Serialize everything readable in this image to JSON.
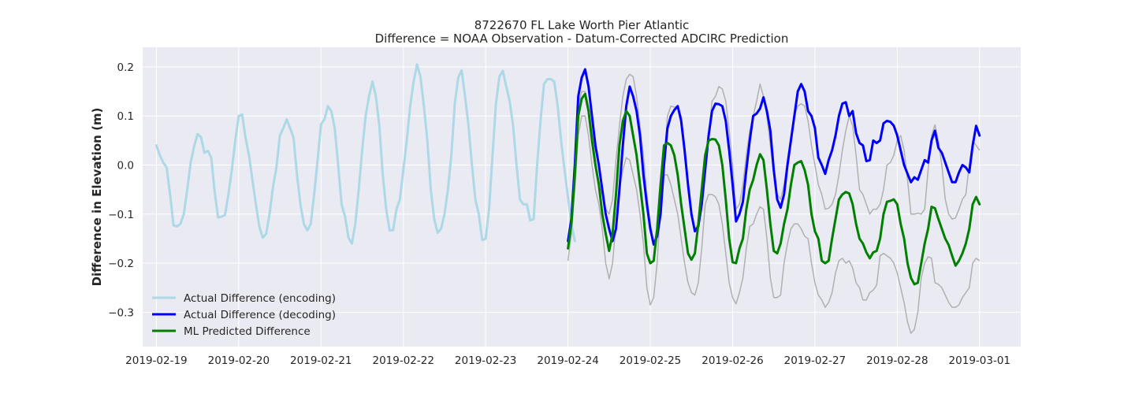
{
  "chart_data": {
    "type": "line",
    "title": "8722670 FL Lake Worth Pier Atlantic",
    "subtitle": "Difference = NOAA Observation - Datum-Corrected ADCIRC Prediction",
    "xlabel": "",
    "ylabel": "Difference in Elevation (m)",
    "xlim": [
      "2019-02-18T20:00",
      "2019-03-01T12:00"
    ],
    "ylim": [
      -0.37,
      0.24
    ],
    "x_ticks": [
      "2019-02-19",
      "2019-02-20",
      "2019-02-21",
      "2019-02-22",
      "2019-02-23",
      "2019-02-24",
      "2019-02-25",
      "2019-02-26",
      "2019-02-27",
      "2019-02-28",
      "2019-03-01"
    ],
    "y_ticks": [
      -0.3,
      -0.2,
      -0.1,
      0.0,
      0.1,
      0.2
    ],
    "y_tick_labels": [
      "−0.3",
      "−0.2",
      "−0.1",
      "0.0",
      "0.1",
      "0.2"
    ],
    "grid": true,
    "legend_position": "lower-left",
    "background": "#eaeaf2",
    "series": [
      {
        "name": "Actual Difference (encoding)",
        "color": "#add8e6",
        "width": 3,
        "x_start": "2019-02-19T00:00",
        "step_hours": 1,
        "values": [
          0.04,
          0.02,
          0.005,
          -0.005,
          -0.06,
          -0.123,
          -0.125,
          -0.12,
          -0.1,
          -0.05,
          0.005,
          0.038,
          0.063,
          0.057,
          0.025,
          0.029,
          0.015,
          -0.055,
          -0.107,
          -0.105,
          -0.102,
          -0.06,
          -0.01,
          0.05,
          0.1,
          0.103,
          0.055,
          0.02,
          -0.03,
          -0.08,
          -0.125,
          -0.148,
          -0.14,
          -0.1,
          -0.045,
          -0.005,
          0.06,
          0.075,
          0.093,
          0.075,
          0.055,
          -0.02,
          -0.08,
          -0.12,
          -0.133,
          -0.12,
          -0.06,
          0.01,
          0.083,
          0.093,
          0.12,
          0.11,
          0.075,
          0.0,
          -0.08,
          -0.105,
          -0.148,
          -0.16,
          -0.12,
          -0.05,
          0.03,
          0.1,
          0.14,
          0.17,
          0.14,
          0.08,
          -0.02,
          -0.09,
          -0.133,
          -0.133,
          -0.09,
          -0.07,
          -0.01,
          0.05,
          0.12,
          0.17,
          0.205,
          0.18,
          0.12,
          0.05,
          -0.05,
          -0.11,
          -0.138,
          -0.13,
          -0.1,
          -0.05,
          0.02,
          0.125,
          0.178,
          0.193,
          0.14,
          0.08,
          0.0,
          -0.07,
          -0.1,
          -0.153,
          -0.15,
          -0.09,
          0.02,
          0.125,
          0.18,
          0.192,
          0.16,
          0.13,
          0.08,
          0.0,
          -0.07,
          -0.08,
          -0.08,
          -0.113,
          -0.11,
          0.0,
          0.09,
          0.165,
          0.175,
          0.175,
          0.17,
          0.12,
          0.05,
          -0.01,
          -0.065,
          -0.12,
          -0.155
        ]
      },
      {
        "name": "Actual Difference (decoding)",
        "color": "#0000ff",
        "width": 3,
        "x_start": "2019-02-24T00:00",
        "step_hours": 1,
        "values": [
          -0.155,
          -0.11,
          0.0,
          0.14,
          0.178,
          0.195,
          0.16,
          0.1,
          0.04,
          0.0,
          -0.05,
          -0.1,
          -0.13,
          -0.155,
          -0.13,
          -0.05,
          0.04,
          0.12,
          0.16,
          0.14,
          0.11,
          0.06,
          -0.02,
          -0.08,
          -0.13,
          -0.162,
          -0.145,
          -0.1,
          0.0,
          0.075,
          0.1,
          0.112,
          0.12,
          0.09,
          0.03,
          -0.04,
          -0.1,
          -0.135,
          -0.125,
          -0.08,
          -0.01,
          0.06,
          0.11,
          0.125,
          0.124,
          0.12,
          0.09,
          0.03,
          -0.04,
          -0.115,
          -0.1,
          -0.075,
          -0.01,
          0.05,
          0.1,
          0.105,
          0.115,
          0.138,
          0.11,
          0.07,
          -0.01,
          -0.07,
          -0.087,
          -0.06,
          0.0,
          0.05,
          0.1,
          0.15,
          0.165,
          0.15,
          0.11,
          0.1,
          0.075,
          0.015,
          0.0,
          -0.018,
          0.01,
          0.03,
          0.06,
          0.1,
          0.125,
          0.128,
          0.1,
          0.11,
          0.065,
          0.045,
          0.04,
          0.008,
          0.01,
          0.05,
          0.045,
          0.05,
          0.085,
          0.09,
          0.088,
          0.08,
          0.06,
          0.03,
          0.0,
          -0.018,
          -0.035,
          -0.025,
          -0.03,
          -0.01,
          0.01,
          0.005,
          0.05,
          0.07,
          0.035,
          0.025,
          0.005,
          -0.015,
          -0.035,
          -0.035,
          -0.015,
          0.0,
          -0.005,
          -0.015,
          0.04,
          0.08,
          0.06
        ]
      },
      {
        "name": "ML Predicted Difference",
        "color": "#008000",
        "width": 3,
        "x_start": "2019-02-24T00:00",
        "step_hours": 1,
        "values": [
          -0.17,
          -0.12,
          -0.02,
          0.1,
          0.135,
          0.145,
          0.11,
          0.05,
          0.0,
          -0.04,
          -0.1,
          -0.14,
          -0.175,
          -0.14,
          -0.06,
          0.04,
          0.09,
          0.11,
          0.1,
          0.06,
          0.02,
          -0.04,
          -0.1,
          -0.18,
          -0.2,
          -0.195,
          -0.13,
          -0.04,
          0.04,
          0.045,
          0.04,
          0.02,
          -0.02,
          -0.08,
          -0.13,
          -0.18,
          -0.193,
          -0.18,
          -0.12,
          -0.05,
          0.02,
          0.05,
          0.053,
          0.052,
          0.04,
          0.0,
          -0.07,
          -0.15,
          -0.198,
          -0.2,
          -0.17,
          -0.15,
          -0.09,
          -0.05,
          -0.03,
          0.0,
          0.022,
          0.01,
          -0.05,
          -0.12,
          -0.175,
          -0.18,
          -0.16,
          -0.12,
          -0.09,
          -0.04,
          0.0,
          0.005,
          0.008,
          -0.01,
          -0.04,
          -0.1,
          -0.135,
          -0.15,
          -0.195,
          -0.2,
          -0.195,
          -0.15,
          -0.11,
          -0.07,
          -0.06,
          -0.055,
          -0.058,
          -0.08,
          -0.12,
          -0.15,
          -0.16,
          -0.178,
          -0.19,
          -0.178,
          -0.175,
          -0.15,
          -0.1,
          -0.075,
          -0.073,
          -0.07,
          -0.08,
          -0.12,
          -0.15,
          -0.2,
          -0.23,
          -0.243,
          -0.24,
          -0.2,
          -0.16,
          -0.13,
          -0.085,
          -0.088,
          -0.11,
          -0.13,
          -0.15,
          -0.163,
          -0.185,
          -0.205,
          -0.195,
          -0.18,
          -0.16,
          -0.13,
          -0.08,
          -0.065,
          -0.08
        ]
      }
    ],
    "background_traces": {
      "color": "#b0b0b0",
      "width": 1.5,
      "x_start": "2019-02-24T00:00",
      "step_hours": 1,
      "traces": [
        [
          -0.195,
          -0.14,
          -0.05,
          0.06,
          0.1,
          0.1,
          0.06,
          0.0,
          -0.05,
          -0.08,
          -0.13,
          -0.2,
          -0.232,
          -0.2,
          -0.12,
          -0.05,
          -0.01,
          0.015,
          0.01,
          -0.02,
          -0.05,
          -0.1,
          -0.16,
          -0.25,
          -0.285,
          -0.27,
          -0.2,
          -0.08,
          -0.02,
          -0.02,
          -0.04,
          -0.07,
          -0.1,
          -0.15,
          -0.2,
          -0.24,
          -0.26,
          -0.265,
          -0.24,
          -0.17,
          -0.08,
          -0.06,
          -0.06,
          -0.065,
          -0.08,
          -0.12,
          -0.18,
          -0.24,
          -0.27,
          -0.283,
          -0.26,
          -0.23,
          -0.17,
          -0.125,
          -0.12,
          -0.1,
          -0.085,
          -0.09,
          -0.15,
          -0.23,
          -0.27,
          -0.27,
          -0.265,
          -0.2,
          -0.16,
          -0.13,
          -0.12,
          -0.12,
          -0.13,
          -0.145,
          -0.15,
          -0.2,
          -0.24,
          -0.265,
          -0.275,
          -0.29,
          -0.28,
          -0.26,
          -0.22,
          -0.195,
          -0.19,
          -0.2,
          -0.195,
          -0.21,
          -0.24,
          -0.25,
          -0.275,
          -0.275,
          -0.26,
          -0.255,
          -0.245,
          -0.185,
          -0.18,
          -0.185,
          -0.19,
          -0.2,
          -0.22,
          -0.25,
          -0.28,
          -0.32,
          -0.343,
          -0.335,
          -0.3,
          -0.23,
          -0.2,
          -0.187,
          -0.19,
          -0.24,
          -0.243,
          -0.25,
          -0.265,
          -0.28,
          -0.29,
          -0.29,
          -0.285,
          -0.27,
          -0.26,
          -0.25,
          -0.2,
          -0.19,
          -0.195
        ],
        [
          -0.16,
          -0.09,
          0.01,
          0.12,
          0.15,
          0.15,
          0.12,
          0.07,
          0.01,
          -0.04,
          -0.06,
          -0.09,
          -0.1,
          -0.07,
          0.01,
          0.08,
          0.14,
          0.175,
          0.185,
          0.18,
          0.14,
          0.08,
          0.02,
          -0.06,
          -0.12,
          -0.16,
          -0.13,
          -0.08,
          0.01,
          0.1,
          0.12,
          0.118,
          0.12,
          0.1,
          0.04,
          -0.04,
          -0.1,
          -0.13,
          -0.12,
          -0.08,
          -0.02,
          0.06,
          0.13,
          0.14,
          0.16,
          0.155,
          0.13,
          0.07,
          0.0,
          -0.09,
          -0.08,
          -0.04,
          0.02,
          0.07,
          0.1,
          0.13,
          0.165,
          0.14,
          0.1,
          0.04,
          -0.02,
          -0.06,
          -0.07,
          -0.04,
          0.01,
          0.06,
          0.1,
          0.12,
          0.125,
          0.12,
          0.09,
          0.04,
          0.0,
          -0.04,
          -0.06,
          -0.09,
          -0.088,
          -0.08,
          -0.06,
          -0.02,
          0.03,
          0.07,
          0.1,
          0.08,
          0.02,
          -0.05,
          -0.06,
          -0.08,
          -0.1,
          -0.09,
          -0.09,
          -0.08,
          -0.05,
          0.0,
          0.005,
          0.02,
          0.05,
          0.06,
          0.03,
          -0.03,
          -0.1,
          -0.1,
          -0.098,
          -0.1,
          -0.09,
          -0.01,
          0.06,
          0.082,
          0.05,
          0.0,
          -0.07,
          -0.1,
          -0.11,
          -0.108,
          -0.09,
          -0.07,
          -0.06,
          0.0,
          0.05,
          0.04,
          0.03
        ]
      ]
    }
  }
}
